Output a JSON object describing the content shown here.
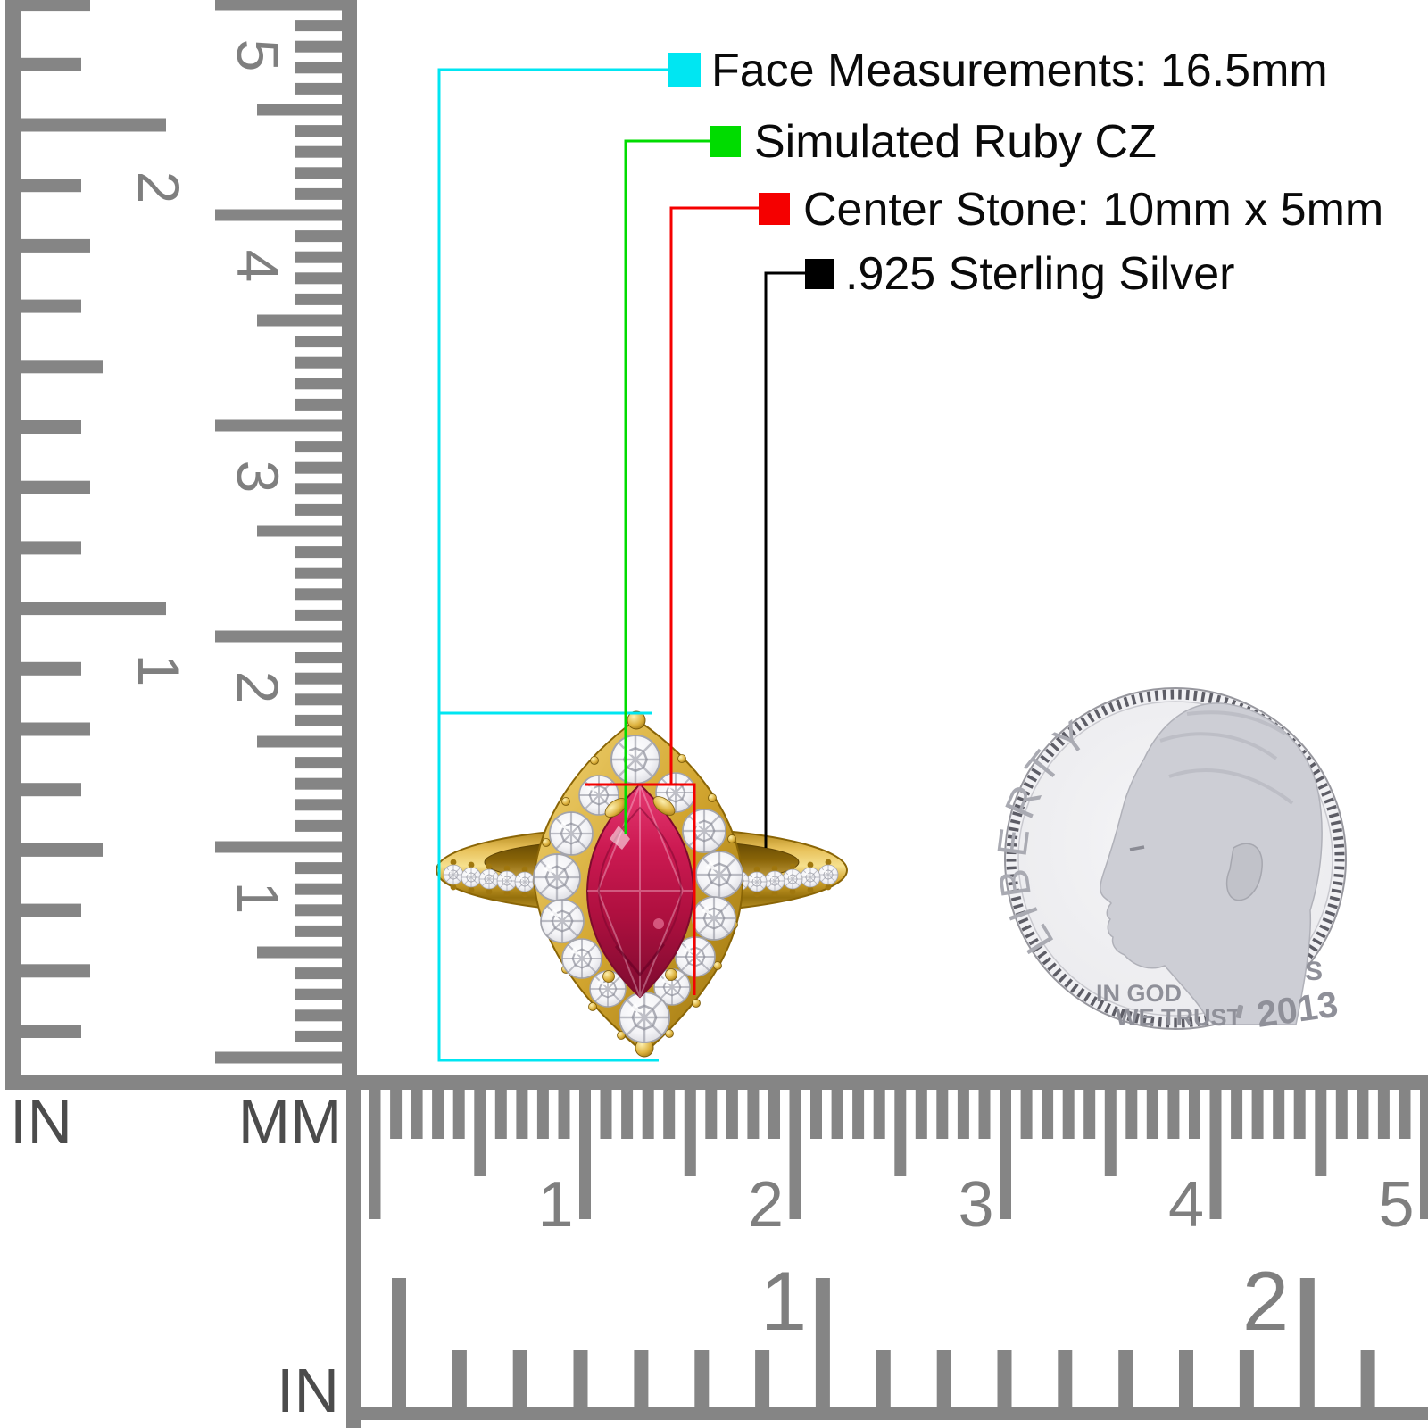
{
  "annotations": [
    {
      "id": "face",
      "label": "Face Measurements: 16.5mm",
      "color": "#00e6f2"
    },
    {
      "id": "gem",
      "label": "Simulated Ruby CZ",
      "color": "#00dc00"
    },
    {
      "id": "stone",
      "label": "Center Stone: 10mm x 5mm",
      "color": "#f50000"
    },
    {
      "id": "metal",
      "label": ".925 Sterling Silver",
      "color": "#000000"
    }
  ],
  "rulers": {
    "left_inch": {
      "unit_label": "IN",
      "numbers": [
        "1",
        "2"
      ]
    },
    "left_mm": {
      "unit_label": "MM",
      "numbers": [
        "1",
        "2",
        "3",
        "4",
        "5"
      ]
    },
    "bottom_mm": {
      "numbers": [
        "1",
        "2",
        "3",
        "4",
        "5"
      ]
    },
    "bottom_inch": {
      "unit_label": "IN",
      "numbers": [
        "1",
        "2"
      ]
    }
  },
  "coin": {
    "legend": "LIBERTY",
    "motto_line1": "IN GOD",
    "motto_line2": "WE TRUST",
    "mint_mark": "S",
    "year": "2013"
  },
  "colors": {
    "ruler_gray": "#858585",
    "gold": "#d2a52f",
    "ruby": "#c11448",
    "cz_white": "#f4f4f7",
    "coin_silver": "#cdced5"
  }
}
